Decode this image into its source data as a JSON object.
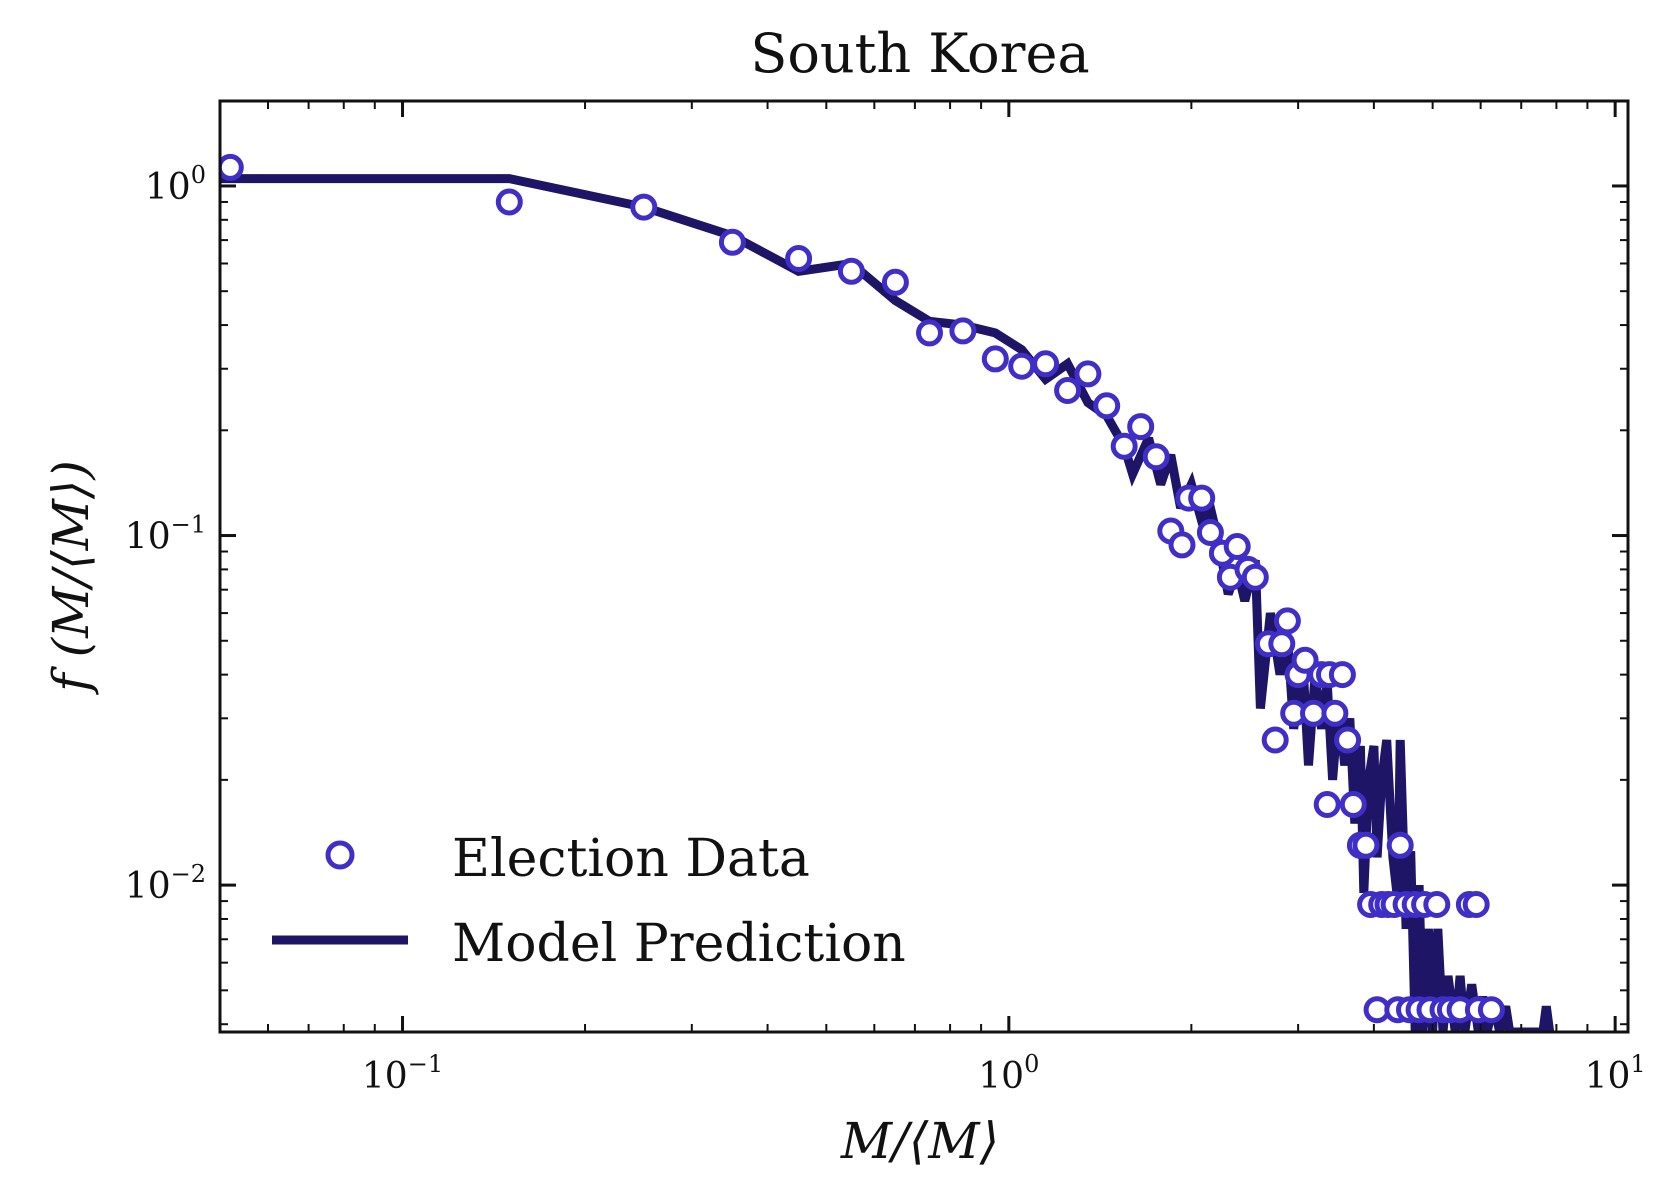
{
  "chart_data": {
    "type": "scatter",
    "title": "South Korea",
    "xlabel": "M/⟨M⟩",
    "ylabel": "f (M/⟨M⟩)",
    "xscale": "log",
    "yscale": "log",
    "xlim": [
      0.05,
      10.5
    ],
    "ylim": [
      0.0038,
      1.75
    ],
    "grid": false,
    "legend_position": "bottom-left",
    "x_ticks": [
      {
        "value": 0.1,
        "base": "10",
        "exp": "−1"
      },
      {
        "value": 1,
        "base": "10",
        "exp": "0"
      },
      {
        "value": 10,
        "base": "10",
        "exp": "1"
      }
    ],
    "y_ticks": [
      {
        "value": 1,
        "base": "10",
        "exp": "0"
      },
      {
        "value": 0.1,
        "base": "10",
        "exp": "−1"
      },
      {
        "value": 0.01,
        "base": "10",
        "exp": "−2"
      }
    ],
    "colors": {
      "marker": "#3f2fc8",
      "line": "#1e1566",
      "frame": "#111111"
    },
    "series": [
      {
        "name": "Election Data",
        "kind": "markers",
        "points": [
          [
            0.052,
            1.13
          ],
          [
            0.15,
            0.9
          ],
          [
            0.25,
            0.87
          ],
          [
            0.35,
            0.69
          ],
          [
            0.45,
            0.62
          ],
          [
            0.55,
            0.57
          ],
          [
            0.65,
            0.53
          ],
          [
            0.74,
            0.38
          ],
          [
            0.84,
            0.385
          ],
          [
            0.95,
            0.32
          ],
          [
            1.05,
            0.305
          ],
          [
            1.15,
            0.31
          ],
          [
            1.25,
            0.26
          ],
          [
            1.35,
            0.29
          ],
          [
            1.45,
            0.235
          ],
          [
            1.55,
            0.18
          ],
          [
            1.65,
            0.205
          ],
          [
            1.75,
            0.168
          ],
          [
            1.85,
            0.103
          ],
          [
            1.93,
            0.094
          ],
          [
            1.98,
            0.128
          ],
          [
            2.08,
            0.128
          ],
          [
            2.15,
            0.102
          ],
          [
            2.25,
            0.089
          ],
          [
            2.32,
            0.076
          ],
          [
            2.38,
            0.093
          ],
          [
            2.48,
            0.08
          ],
          [
            2.55,
            0.076
          ],
          [
            2.68,
            0.049
          ],
          [
            2.75,
            0.026
          ],
          [
            2.82,
            0.049
          ],
          [
            2.88,
            0.057
          ],
          [
            2.95,
            0.031
          ],
          [
            3.0,
            0.04
          ],
          [
            3.08,
            0.044
          ],
          [
            3.18,
            0.031
          ],
          [
            3.28,
            0.04
          ],
          [
            3.35,
            0.017
          ],
          [
            3.38,
            0.04
          ],
          [
            3.45,
            0.031
          ],
          [
            3.55,
            0.04
          ],
          [
            3.62,
            0.026
          ],
          [
            3.7,
            0.017
          ],
          [
            3.8,
            0.013
          ],
          [
            3.88,
            0.013
          ],
          [
            3.95,
            0.0088
          ],
          [
            4.05,
            0.0044
          ],
          [
            4.12,
            0.0088
          ],
          [
            4.22,
            0.0088
          ],
          [
            4.32,
            0.0088
          ],
          [
            4.38,
            0.0044
          ],
          [
            4.42,
            0.013
          ],
          [
            4.52,
            0.0088
          ],
          [
            4.58,
            0.0044
          ],
          [
            4.68,
            0.0088
          ],
          [
            4.75,
            0.0044
          ],
          [
            4.85,
            0.0088
          ],
          [
            4.95,
            0.0044
          ],
          [
            5.08,
            0.0088
          ],
          [
            5.2,
            0.0044
          ],
          [
            5.35,
            0.0044
          ],
          [
            5.55,
            0.0044
          ],
          [
            5.75,
            0.0088
          ],
          [
            5.9,
            0.0088
          ],
          [
            5.95,
            0.0044
          ],
          [
            6.25,
            0.0044
          ]
        ]
      },
      {
        "name": "Model Prediction",
        "kind": "line",
        "points": [
          [
            0.05,
            1.05
          ],
          [
            0.15,
            1.05
          ],
          [
            0.25,
            0.87
          ],
          [
            0.35,
            0.72
          ],
          [
            0.45,
            0.57
          ],
          [
            0.55,
            0.6
          ],
          [
            0.65,
            0.47
          ],
          [
            0.74,
            0.41
          ],
          [
            0.84,
            0.4
          ],
          [
            0.95,
            0.38
          ],
          [
            1.05,
            0.34
          ],
          [
            1.15,
            0.28
          ],
          [
            1.25,
            0.31
          ],
          [
            1.35,
            0.24
          ],
          [
            1.45,
            0.22
          ],
          [
            1.55,
            0.18
          ],
          [
            1.6,
            0.15
          ],
          [
            1.7,
            0.19
          ],
          [
            1.78,
            0.14
          ],
          [
            1.85,
            0.17
          ],
          [
            1.92,
            0.12
          ],
          [
            2.0,
            0.14
          ],
          [
            2.08,
            0.11
          ],
          [
            2.15,
            0.12
          ],
          [
            2.22,
            0.095
          ],
          [
            2.3,
            0.068
          ],
          [
            2.38,
            0.08
          ],
          [
            2.45,
            0.065
          ],
          [
            2.55,
            0.085
          ],
          [
            2.6,
            0.032
          ],
          [
            2.7,
            0.06
          ],
          [
            2.8,
            0.04
          ],
          [
            2.88,
            0.052
          ],
          [
            2.95,
            0.028
          ],
          [
            3.05,
            0.045
          ],
          [
            3.12,
            0.022
          ],
          [
            3.2,
            0.04
          ],
          [
            3.28,
            0.028
          ],
          [
            3.35,
            0.038
          ],
          [
            3.42,
            0.02
          ],
          [
            3.5,
            0.033
          ],
          [
            3.58,
            0.022
          ],
          [
            3.65,
            0.03
          ],
          [
            3.72,
            0.015
          ],
          [
            3.8,
            0.025
          ],
          [
            3.85,
            0.0095
          ],
          [
            3.92,
            0.02
          ],
          [
            4.0,
            0.025
          ],
          [
            4.05,
            0.012
          ],
          [
            4.12,
            0.02
          ],
          [
            4.2,
            0.026
          ],
          [
            4.3,
            0.012
          ],
          [
            4.38,
            0.009
          ],
          [
            4.42,
            0.026
          ],
          [
            4.52,
            0.0075
          ],
          [
            4.6,
            0.0125
          ],
          [
            4.68,
            0.0038
          ],
          [
            4.75,
            0.01
          ],
          [
            4.82,
            0.0038
          ],
          [
            4.92,
            0.0075
          ],
          [
            5.0,
            0.0038
          ],
          [
            5.1,
            0.0075
          ],
          [
            5.2,
            0.0038
          ],
          [
            5.3,
            0.0055
          ],
          [
            5.45,
            0.0038
          ],
          [
            5.55,
            0.0055
          ],
          [
            5.65,
            0.0038
          ],
          [
            5.8,
            0.0052
          ],
          [
            5.95,
            0.0038
          ],
          [
            6.05,
            0.0048
          ],
          [
            6.15,
            0.0038
          ],
          [
            6.3,
            0.0046
          ],
          [
            6.45,
            0.0038
          ],
          [
            6.6,
            0.0045
          ],
          [
            6.7,
            0.0038
          ],
          [
            7.6,
            0.0038
          ],
          [
            7.7,
            0.0045
          ],
          [
            7.8,
            0.0038
          ]
        ]
      }
    ]
  }
}
